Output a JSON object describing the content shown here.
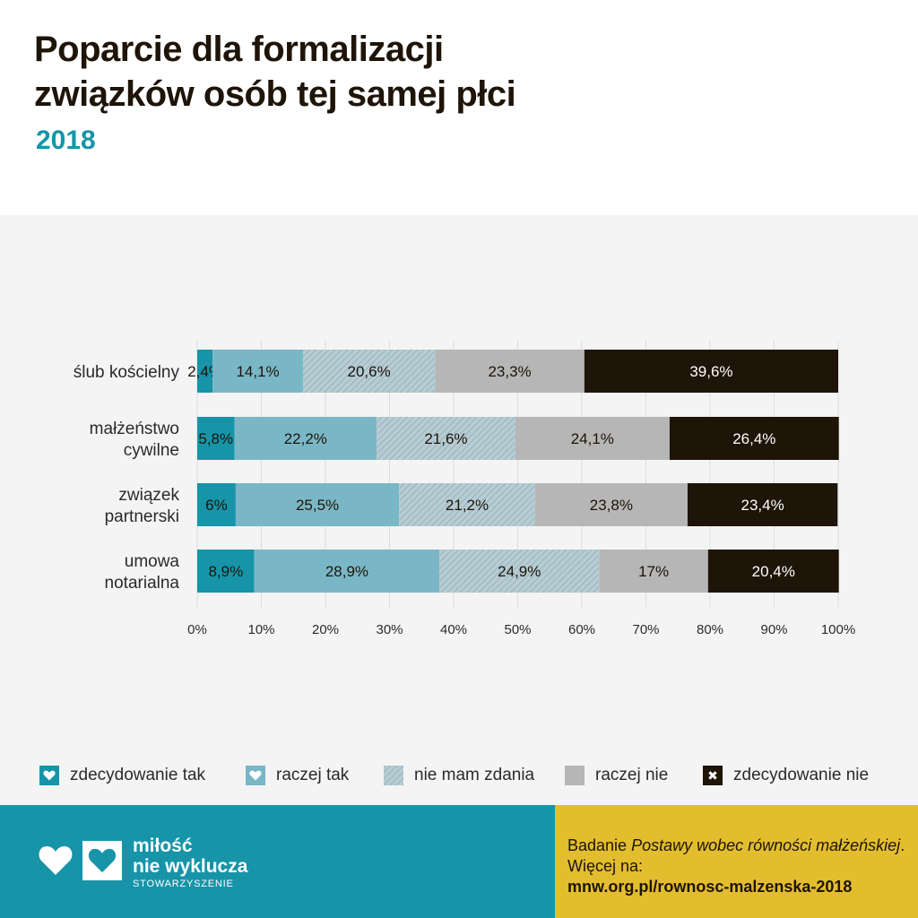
{
  "header": {
    "title_line1": "Poparcie dla formalizacji",
    "title_line2": "związków osób tej samej płci",
    "subtitle": "2018"
  },
  "colors": {
    "zdecydowanie_tak": "#1794a8",
    "raczej_tak": "#7ab7c6",
    "nie_mam_zdania": "#a9c4cd",
    "raczej_nie": "#b6b6b6",
    "zdecydowanie_nie": "#1e1408",
    "accent": "#1794a8",
    "footer_right": "#e2bd2e"
  },
  "chart_data": {
    "type": "bar",
    "orientation": "horizontal",
    "stacked": true,
    "categories": [
      [
        "ślub kościelny"
      ],
      [
        "małżeństwo",
        "cywilne"
      ],
      [
        "związek",
        "partnerski"
      ],
      [
        "umowa",
        "notarialna"
      ]
    ],
    "series": [
      {
        "name": "zdecydowanie tak",
        "values": [
          2.4,
          5.8,
          6,
          8.9
        ],
        "labels": [
          "2,4%",
          "5,8%",
          "6%",
          "8,9%"
        ]
      },
      {
        "name": "raczej tak",
        "values": [
          14.1,
          22.2,
          25.5,
          28.9
        ],
        "labels": [
          "14,1%",
          "22,2%",
          "25,5%",
          "28,9%"
        ]
      },
      {
        "name": "nie mam zdania",
        "values": [
          20.6,
          21.6,
          21.2,
          24.9
        ],
        "labels": [
          "20,6%",
          "21,6%",
          "21,2%",
          "24,9%"
        ]
      },
      {
        "name": "raczej nie",
        "values": [
          23.3,
          24.1,
          23.8,
          17
        ],
        "labels": [
          "23,3%",
          "24,1%",
          "23,8%",
          "17%"
        ]
      },
      {
        "name": "zdecydowanie nie",
        "values": [
          39.6,
          26.4,
          23.4,
          20.4
        ],
        "labels": [
          "39,6%",
          "26,4%",
          "23,4%",
          "20,4%"
        ]
      }
    ],
    "xlim": [
      0,
      100
    ],
    "xticks": [
      "0%",
      "10%",
      "20%",
      "30%",
      "40%",
      "50%",
      "60%",
      "70%",
      "80%",
      "90%",
      "100%"
    ],
    "grid": true,
    "legend_position": "bottom"
  },
  "legend": {
    "items": [
      {
        "label": "zdecydowanie tak",
        "icon": "heart-icon"
      },
      {
        "label": "raczej tak",
        "icon": "heart-icon"
      },
      {
        "label": "nie mam zdania",
        "icon": "hatch-swatch"
      },
      {
        "label": "raczej nie",
        "icon": "plain-swatch"
      },
      {
        "label": "zdecydowanie nie",
        "icon": "cross-icon"
      }
    ]
  },
  "footer": {
    "logo_line1": "miłość",
    "logo_line2": "nie wyklucza",
    "logo_small": "STOWARZYSZENIE",
    "note_prefix": "Badanie ",
    "note_italic": "Postawy wobec równości małżeńskiej",
    "note_suffix": ". Więcej na:",
    "note_url": "mnw.org.pl/rownosc-malzenska-2018"
  }
}
